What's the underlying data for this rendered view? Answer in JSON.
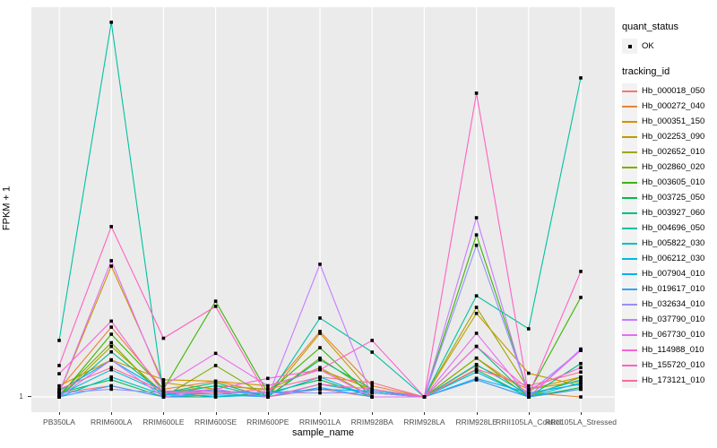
{
  "figure": {
    "plot_bg": "#EBEBEB",
    "grid_color": "#FFFFFF",
    "tick_color": "#333333",
    "tick_label_color": "#4D4D4D",
    "y_tick_label": "1"
  },
  "legend": {
    "quant_status_title": "quant_status",
    "quant_status_items": [
      {
        "label": "OK",
        "symbol": "black-point"
      }
    ],
    "tracking_id_title": "tracking_id"
  },
  "chart_data": {
    "type": "line",
    "title": "",
    "xlabel": "sample_name",
    "ylabel": "FPKM + 1",
    "y_scale": "log10",
    "ylim": [
      1,
      10000
    ],
    "y_ticks": [
      1
    ],
    "grid": true,
    "legend_position": "right",
    "point_color": "#000000",
    "categories": [
      "PB350LA",
      "RRIM600LA",
      "RRIM600LE",
      "RRIM600SE",
      "RRIM600PE",
      "RRIM901LA",
      "RRIM928BA",
      "RRIM928LA",
      "RRIM928LE",
      "RRII105LA_Control",
      "RRII105LA_Stressed"
    ],
    "series": [
      {
        "name": "Hb_000018_050",
        "color": "#F8766D",
        "values": [
          1.1,
          1.3,
          1.0,
          1.1,
          1.0,
          1.2,
          1.0,
          1.0,
          1.5,
          1.0,
          1.2
        ]
      },
      {
        "name": "Hb_000272_040",
        "color": "#EA8331",
        "values": [
          1.2,
          5.2,
          1.2,
          1.45,
          1.1,
          4.7,
          1.3,
          1.0,
          2.5,
          1.1,
          1.0
        ]
      },
      {
        "name": "Hb_000351_150",
        "color": "#D89000",
        "values": [
          1.3,
          2.4,
          1.5,
          1.45,
          1.3,
          1.9,
          1.2,
          1.0,
          2.1,
          1.2,
          1.6
        ]
      },
      {
        "name": "Hb_002253_090",
        "color": "#C09B00",
        "values": [
          1.1,
          22,
          1.4,
          1.2,
          1.0,
          4.5,
          1.1,
          1.0,
          7.2,
          1.75,
          1.3
        ]
      },
      {
        "name": "Hb_002652_010",
        "color": "#A3A500",
        "values": [
          1.0,
          3.3,
          1.1,
          1.3,
          1.2,
          2.0,
          1.0,
          1.0,
          8.3,
          1.2,
          1.45
        ]
      },
      {
        "name": "Hb_002860_020",
        "color": "#7CAE00",
        "values": [
          1.05,
          3.6,
          1.0,
          2.1,
          1.0,
          2.5,
          1.1,
          1.0,
          2.5,
          1.0,
          1.6
        ]
      },
      {
        "name": "Hb_003605_010",
        "color": "#39B600",
        "values": [
          1.0,
          4.4,
          1.2,
          9.6,
          1.1,
          3.2,
          1.0,
          1.0,
          46,
          1.1,
          10.5
        ]
      },
      {
        "name": "Hb_003725_050",
        "color": "#00BB4E",
        "values": [
          1.1,
          1.5,
          1.0,
          1.0,
          1.1,
          1.5,
          1.0,
          1.0,
          1.9,
          1.0,
          1.25
        ]
      },
      {
        "name": "Hb_003927_060",
        "color": "#00BF7D",
        "values": [
          1.0,
          2.9,
          1.1,
          1.4,
          1.0,
          2.4,
          1.2,
          1.0,
          3.3,
          1.0,
          2.2
        ]
      },
      {
        "name": "Hb_004696_050",
        "color": "#00C1A3",
        "values": [
          3.8,
          7000,
          1.05,
          1.3,
          1.0,
          6.45,
          2.88,
          1.0,
          10.9,
          5.0,
          1880
        ]
      },
      {
        "name": "Hb_005822_030",
        "color": "#00BFC4",
        "values": [
          1.0,
          1.6,
          1.05,
          1.1,
          1.0,
          1.35,
          1.1,
          1.0,
          2.15,
          1.05,
          1.5
        ]
      },
      {
        "name": "Hb_006212_030",
        "color": "#00BAE0",
        "values": [
          1.05,
          1.9,
          1.1,
          1.0,
          1.05,
          1.6,
          1.0,
          1.0,
          1.8,
          1.0,
          1.4
        ]
      },
      {
        "name": "Hb_007904_010",
        "color": "#00B0F6",
        "values": [
          1.15,
          2.38,
          1.15,
          1.15,
          1.1,
          1.2,
          1.15,
          1.0,
          1.55,
          1.1,
          1.35
        ]
      },
      {
        "name": "Hb_019617_010",
        "color": "#35A2FF",
        "values": [
          1.0,
          1.3,
          1.0,
          1.05,
          1.0,
          1.25,
          1.0,
          1.0,
          1.5,
          1.0,
          1.2
        ]
      },
      {
        "name": "Hb_032634_010",
        "color": "#9590FF",
        "values": [
          1.1,
          1.2,
          1.1,
          1.1,
          1.1,
          1.1,
          1.1,
          1.0,
          36,
          1.1,
          3.0
        ]
      },
      {
        "name": "Hb_037790_010",
        "color": "#C77CFF",
        "values": [
          1.0,
          2.4,
          1.0,
          1.2,
          1.0,
          23,
          1.0,
          1.0,
          69,
          1.0,
          3.1
        ]
      },
      {
        "name": "Hb_067730_010",
        "color": "#E76BF3",
        "values": [
          1.1,
          25,
          1.3,
          2.8,
          1.3,
          1.9,
          1.0,
          1.0,
          4.5,
          1.0,
          3.0
        ]
      },
      {
        "name": "Hb_114988_010",
        "color": "#FA62DB",
        "values": [
          1.73,
          6.0,
          1.1,
          1.2,
          1.55,
          1.9,
          3.8,
          1.0,
          3.3,
          1.2,
          2.0
        ]
      },
      {
        "name": "Hb_155720_010",
        "color": "#FF61C3",
        "values": [
          2.1,
          56,
          4.0,
          8.5,
          1.0,
          1.35,
          1.2,
          1.0,
          1310,
          1.05,
          19.4
        ]
      },
      {
        "name": "Hb_173121_010",
        "color": "#FF6A98",
        "values": [
          1.2,
          2.0,
          1.15,
          1.1,
          1.2,
          1.6,
          1.4,
          1.0,
          1.93,
          1.3,
          1.8
        ]
      }
    ]
  }
}
